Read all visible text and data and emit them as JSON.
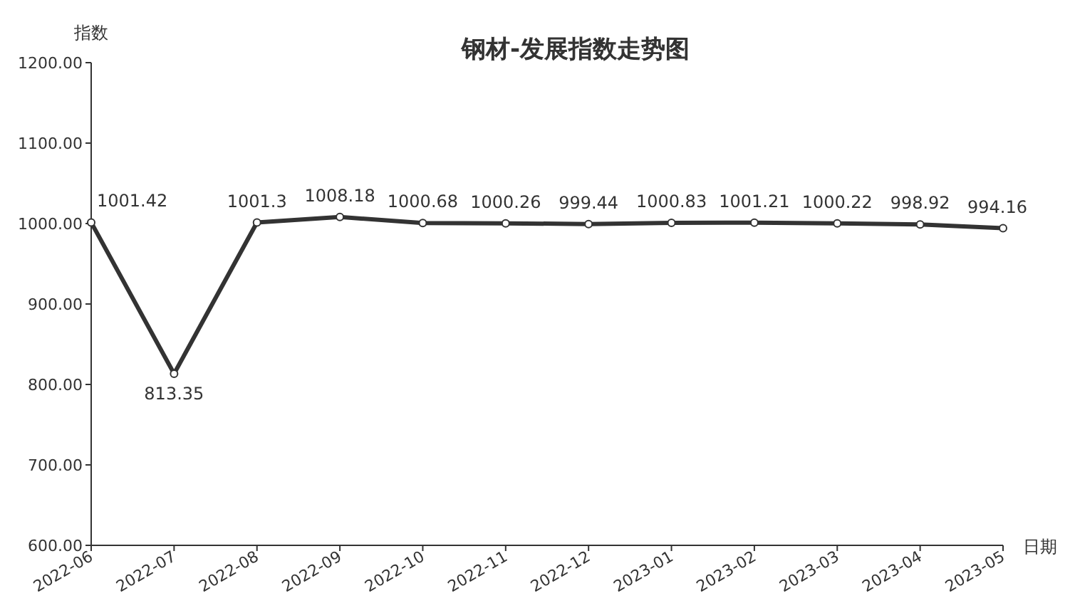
{
  "chart_data": {
    "type": "line",
    "title": "钢材-发展指数走势图",
    "xlabel": "日期",
    "ylabel": "指数",
    "categories": [
      "2022-06",
      "2022-07",
      "2022-08",
      "2022-09",
      "2022-10",
      "2022-11",
      "2022-12",
      "2023-01",
      "2023-02",
      "2023-03",
      "2023-04",
      "2023-05"
    ],
    "series": [
      {
        "color": "#333333",
        "values": [
          1001.42,
          813.35,
          1001.3,
          1008.18,
          1000.68,
          1000.26,
          999.44,
          1000.83,
          1001.21,
          1000.22,
          998.92,
          994.16
        ]
      }
    ],
    "ylim": [
      600,
      1200
    ],
    "yticks": [
      {
        "value": 600,
        "label": "600.00"
      },
      {
        "value": 700,
        "label": "700.00"
      },
      {
        "value": 800,
        "label": "800.00"
      },
      {
        "value": 900,
        "label": "900.00"
      },
      {
        "value": 1000,
        "label": "1000.00"
      },
      {
        "value": 1100,
        "label": "1100.00"
      },
      {
        "value": 1200,
        "label": "1200.00"
      }
    ],
    "data_labels": true,
    "marker": "circle"
  }
}
